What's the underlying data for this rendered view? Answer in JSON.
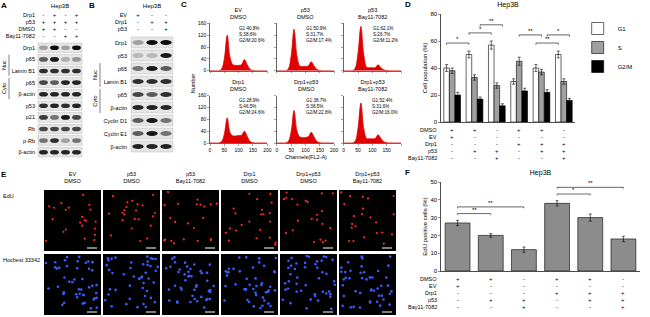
{
  "figure": {
    "A": {
      "label": "A",
      "header": "Hep3B",
      "conditions": [
        {
          "label": "Drp1",
          "signs": [
            "-",
            "+",
            "-",
            "+"
          ]
        },
        {
          "label": "p53",
          "signs": [
            "+",
            "+",
            "+",
            "+"
          ]
        },
        {
          "label": "DMSO",
          "signs": [
            "+",
            "+",
            "-",
            "-"
          ]
        },
        {
          "label": "Bay11-7082",
          "signs": [
            "-",
            "-",
            "+",
            "+"
          ]
        }
      ],
      "blots": [
        {
          "label": "Drp1",
          "intensity": [
            0.3,
            0.95,
            0.3,
            0.95
          ]
        },
        {
          "label": "p65",
          "group": "Nuc",
          "intensity": [
            0.6,
            0.9,
            0.25,
            0.35
          ]
        },
        {
          "label": "Lamin B1",
          "group": "Nuc",
          "intensity": [
            0.8,
            0.8,
            0.8,
            0.8
          ]
        },
        {
          "label": "p65",
          "group": "Cyto",
          "intensity": [
            0.7,
            0.6,
            0.85,
            0.85
          ]
        },
        {
          "label": "β-actin",
          "group": "Cyto",
          "intensity": [
            0.85,
            0.85,
            0.85,
            0.85
          ]
        },
        {
          "label": "p53",
          "intensity": [
            0.8,
            0.85,
            0.8,
            0.85
          ]
        },
        {
          "label": "p21",
          "intensity": [
            0.75,
            0.5,
            0.9,
            0.7
          ]
        },
        {
          "label": "Rb",
          "intensity": [
            0.7,
            0.7,
            0.7,
            0.7
          ]
        },
        {
          "label": "p-Rb",
          "intensity": [
            0.5,
            0.8,
            0.3,
            0.5
          ]
        },
        {
          "label": "β-actin",
          "intensity": [
            0.85,
            0.85,
            0.85,
            0.85
          ]
        }
      ]
    },
    "B": {
      "label": "B",
      "header": "Hep3B",
      "conditions": [
        {
          "label": "EV",
          "signs": [
            "+",
            "-",
            "-"
          ]
        },
        {
          "label": "Drp1",
          "signs": [
            "-",
            "+",
            "+"
          ]
        },
        {
          "label": "p53",
          "signs": [
            "-",
            "-",
            "+"
          ]
        }
      ],
      "blots": [
        {
          "label": "Drp1",
          "intensity": [
            0.3,
            0.95,
            0.95
          ]
        },
        {
          "label": "p53",
          "intensity": [
            0.2,
            0.2,
            0.9
          ]
        },
        {
          "label": "p65",
          "group": "Nuc",
          "intensity": [
            0.5,
            0.9,
            0.6
          ]
        },
        {
          "label": "Lamin B1",
          "group": "Nuc",
          "intensity": [
            0.8,
            0.8,
            0.8
          ]
        },
        {
          "label": "p65",
          "group": "Cyto",
          "intensity": [
            0.7,
            0.6,
            0.8
          ]
        },
        {
          "label": "β-actin",
          "group": "Cyto",
          "intensity": [
            0.85,
            0.85,
            0.85
          ]
        },
        {
          "label": "Cyclin D1",
          "intensity": [
            0.6,
            0.9,
            0.5
          ]
        },
        {
          "label": "Cyclin E1",
          "intensity": [
            0.6,
            0.9,
            0.5
          ]
        },
        {
          "label": "β-actin",
          "intensity": [
            0.85,
            0.85,
            0.85
          ]
        }
      ]
    },
    "C": {
      "label": "C",
      "type": "area",
      "y_title": "Number",
      "x_title": "Channels(FL2-A)",
      "color": "#e00000",
      "x": [
        0,
        10,
        20,
        30,
        40,
        50,
        60,
        70,
        80,
        90,
        100,
        110,
        120,
        130,
        140,
        150,
        160,
        170,
        180,
        190,
        200
      ],
      "xlim": [
        0,
        200
      ],
      "xticks": [
        0,
        50,
        100,
        150,
        200
      ],
      "ylim": [
        0,
        160
      ],
      "yticks": [
        0,
        40,
        80,
        120,
        160
      ],
      "histograms": [
        {
          "title": [
            "EV",
            "DMSO"
          ],
          "stats": [
            "G1:40.8%",
            "S:38.6%",
            "G2/M:20.6%"
          ],
          "values": [
            0,
            0,
            0,
            0,
            5,
            40,
            120,
            45,
            20,
            18,
            18,
            20,
            38,
            20,
            5,
            1,
            0,
            0,
            0,
            0,
            0
          ]
        },
        {
          "title": [
            "p53",
            "DMSO"
          ],
          "stats": [
            "G1:50.9%",
            "S:31.7%",
            "G2/M:17.4%"
          ],
          "values": [
            0,
            0,
            0,
            0,
            6,
            50,
            140,
            50,
            16,
            14,
            14,
            16,
            30,
            16,
            4,
            1,
            0,
            0,
            0,
            0,
            0
          ]
        },
        {
          "title": [
            "p53",
            "Bay11-7082"
          ],
          "stats": [
            "G1:62.1%",
            "S:26.7%",
            "G2/M:11.2%"
          ],
          "values": [
            0,
            0,
            0,
            0,
            8,
            60,
            150,
            55,
            12,
            10,
            10,
            10,
            20,
            10,
            3,
            1,
            0,
            0,
            0,
            0,
            0
          ]
        },
        {
          "title": [
            "Drp1",
            "DMSO"
          ],
          "stats": [
            "G1:28.9%",
            "S:46.5%",
            "G2/M:24.6%"
          ],
          "values": [
            0,
            0,
            0,
            0,
            4,
            30,
            85,
            35,
            24,
            24,
            25,
            26,
            40,
            22,
            5,
            1,
            0,
            0,
            0,
            0,
            0
          ]
        },
        {
          "title": [
            "Drp1+p53",
            "DMSO"
          ],
          "stats": [
            "G1:38.7%",
            "S:38.5%",
            "G2/M:22.8%"
          ],
          "values": [
            0,
            0,
            0,
            0,
            5,
            38,
            110,
            42,
            20,
            18,
            19,
            21,
            36,
            20,
            5,
            1,
            0,
            0,
            0,
            0,
            0
          ]
        },
        {
          "title": [
            "Drp1+p53",
            "Bay11-7082"
          ],
          "stats": [
            "G1:52.4%",
            "S:31.6%",
            "G2/M:16.0%"
          ],
          "values": [
            0,
            0,
            0,
            0,
            6,
            50,
            135,
            48,
            15,
            14,
            14,
            15,
            28,
            15,
            4,
            1,
            0,
            0,
            0,
            0,
            0
          ]
        }
      ]
    },
    "E": {
      "label": "E",
      "columns": [
        [
          "EV",
          "DMSO"
        ],
        [
          "p53",
          "DMSO"
        ],
        [
          "p53",
          "Bay11-7082"
        ],
        [
          "Drp1",
          "DMSO"
        ],
        [
          "Drp1+p53",
          "DMSO"
        ],
        [
          "Drp1+p53",
          "Bay11-7082"
        ]
      ],
      "rows": [
        "EdU",
        "Hochest 33342"
      ]
    }
  },
  "chart_data": [
    {
      "label": "D",
      "type": "bar",
      "title": "Hep3B",
      "y_title": "Cell population (%)",
      "categories": [
        null,
        null,
        null,
        null,
        null,
        null
      ],
      "tick_labels": "y",
      "series": [
        {
          "name": "G1",
          "color": "#ffffff",
          "values": [
            40,
            50,
            57,
            30,
            40,
            50
          ],
          "errors": [
            2.5,
            2.5,
            3,
            2,
            2.5,
            2.5
          ]
        },
        {
          "name": "S",
          "color": "#a0a0a0",
          "values": [
            38,
            33,
            27,
            45,
            37,
            30
          ],
          "errors": [
            2,
            2,
            2,
            3,
            2,
            2
          ]
        },
        {
          "name": "G2/M",
          "color": "#000000",
          "values": [
            20,
            17,
            12,
            23,
            22,
            16
          ],
          "errors": [
            2,
            1.5,
            1.5,
            2,
            2,
            1.5
          ]
        }
      ],
      "conditions": [
        {
          "label": "DMSO",
          "signs": [
            "+",
            "+",
            "-",
            "+",
            "+",
            "-"
          ]
        },
        {
          "label": "EV",
          "signs": [
            "+",
            "-",
            "-",
            "-",
            "-",
            "-"
          ]
        },
        {
          "label": "Drp1",
          "signs": [
            "-",
            "-",
            "-",
            "+",
            "+",
            "+"
          ]
        },
        {
          "label": "p53",
          "signs": [
            "-",
            "+",
            "+",
            "-",
            "+",
            "+"
          ]
        },
        {
          "label": "Bay11-7082",
          "signs": [
            "-",
            "-",
            "+",
            "-",
            "-",
            "+"
          ]
        }
      ],
      "significance": [
        {
          "series": "G1",
          "from": 0,
          "to": 1,
          "label": "*"
        },
        {
          "series": "G1",
          "from": 1,
          "to": 2,
          "label": "*"
        },
        {
          "series": "G1",
          "from": 4,
          "to": 5,
          "label": "**"
        },
        {
          "series": "S",
          "from": 3,
          "to": 4,
          "label": "**"
        },
        {
          "series": "G2/M",
          "from": 1,
          "to": 2,
          "label": "**"
        },
        {
          "series": "G2/M",
          "from": 4,
          "to": 5,
          "label": "*"
        }
      ],
      "ylim": [
        0,
        80
      ],
      "yticks": [
        0,
        20,
        40,
        60,
        80
      ],
      "legend": "right",
      "grid": false
    },
    {
      "label": "F",
      "type": "bar",
      "title": "Hep3B",
      "y_title": "EdU positive cells (%)",
      "categories": [
        null,
        null,
        null,
        null,
        null,
        null
      ],
      "tick_labels": "y",
      "values": [
        27,
        20,
        12,
        38,
        30,
        18
      ],
      "errors": [
        1.5,
        1,
        1.5,
        1.5,
        2,
        1.5
      ],
      "color": "#8c8c8c",
      "conditions": [
        {
          "label": "DMSO",
          "signs": [
            "+",
            "+",
            "-",
            "+",
            "+",
            "-"
          ]
        },
        {
          "label": "EV",
          "signs": [
            "+",
            "-",
            "-",
            "-",
            "-",
            "-"
          ]
        },
        {
          "label": "Drp1",
          "signs": [
            "-",
            "-",
            "-",
            "+",
            "+",
            "+"
          ]
        },
        {
          "label": "p53",
          "signs": [
            "-",
            "+",
            "+",
            "-",
            "+",
            "+"
          ]
        },
        {
          "label": "Bay11-7082",
          "signs": [
            "-",
            "-",
            "+",
            "-",
            "-",
            "+"
          ]
        }
      ],
      "significance": [
        {
          "from": 0,
          "to": 1,
          "label": "**"
        },
        {
          "from": 0,
          "to": 2,
          "label": "**"
        },
        {
          "from": 3,
          "to": 4,
          "label": "*"
        },
        {
          "from": 3,
          "to": 5,
          "label": "**"
        }
      ],
      "ylim": [
        0,
        50
      ],
      "yticks": [
        0,
        10,
        20,
        30,
        40,
        50
      ],
      "grid": false
    }
  ]
}
